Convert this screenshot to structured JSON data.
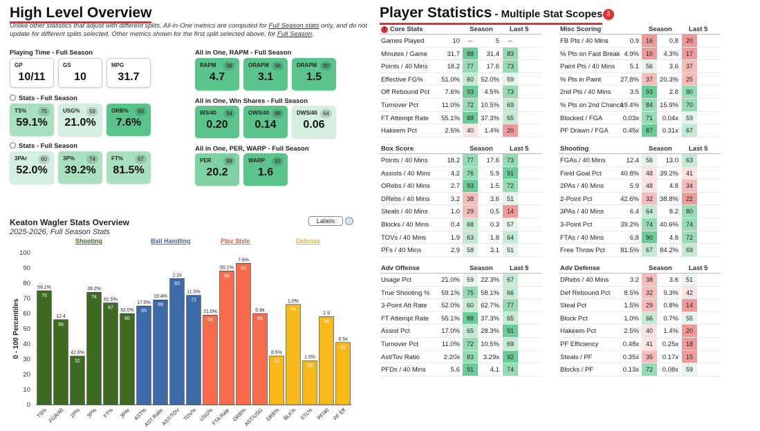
{
  "left": {
    "title": "High Level Overview",
    "note_part1": "Unlike other statistics that adjust with different splits, All-in-One metrics are computed for ",
    "note_link1": "Full Season stats",
    "note_part2": " only, and do not update for different splits selected. Other metrics shown for the first split selected above, for ",
    "note_link2": "Full Season",
    "note_part3": ".",
    "playing_time_title": "Playing Time - Full Season",
    "playing_time": [
      {
        "label": "GP",
        "value": "10/11"
      },
      {
        "label": "GS",
        "value": "10"
      },
      {
        "label": "MPG",
        "value": "31.7"
      }
    ],
    "stats1_title": "Stats - Full Season",
    "stats1": [
      {
        "label": "TS%",
        "value": "59.1%",
        "pct": "75"
      },
      {
        "label": "USG%",
        "value": "21.0%",
        "pct": "59"
      },
      {
        "label": "ORB%",
        "value": "7.6%",
        "pct": "93"
      }
    ],
    "stats2_title": "Stats - Full Season",
    "stats2": [
      {
        "label": "3PAr",
        "value": "52.0%",
        "pct": "60"
      },
      {
        "label": "3P%",
        "value": "39.2%",
        "pct": "74"
      },
      {
        "label": "FT%",
        "value": "81.5%",
        "pct": "67"
      }
    ],
    "rapm_title": "All in One, RAPM - Full Season",
    "rapm": [
      {
        "label": "RAPM",
        "value": "4.7",
        "pct": "98"
      },
      {
        "label": "ORAPM",
        "value": "3.1",
        "pct": "98"
      },
      {
        "label": "DRAPM",
        "value": "1.5",
        "pct": "90"
      }
    ],
    "ws_title": "All in One, Win Shares - Full Season",
    "ws": [
      {
        "label": "WS/40",
        "value": "0.20",
        "pct": "94"
      },
      {
        "label": "OWS/40",
        "value": "0.14",
        "pct": "96"
      },
      {
        "label": "DWS/40",
        "value": "0.06",
        "pct": "64"
      }
    ],
    "per_title": "All in One, PER, WARP - Full Season",
    "per": [
      {
        "label": "PER",
        "value": "20.2",
        "pct": "88"
      },
      {
        "label": "WARP",
        "value": "1.6",
        "pct": "93"
      }
    ]
  },
  "chart_header": {
    "title": "Keaton Wagler Stats Overview",
    "subtitle": "2025-2026, Full Season Stats",
    "labels_button": "Labels",
    "categories": [
      {
        "name": "Shooting",
        "color": "#3e6b21"
      },
      {
        "name": "Ball Handling",
        "color": "#3d6aa8"
      },
      {
        "name": "Play Style",
        "color": "#f05a3a"
      },
      {
        "name": "Defense",
        "color": "#f1b316"
      }
    ]
  },
  "chart_data": {
    "type": "bar",
    "title": "Keaton Wagler Stats Overview",
    "ylabel": "0 - 100 Percentiles",
    "ylim": [
      0,
      100
    ],
    "yticks": [
      0,
      10,
      20,
      30,
      40,
      50,
      60,
      70,
      80,
      90,
      100
    ],
    "categories": [
      "TS%",
      "FGA/40",
      "2P%",
      "3P%",
      "FT%",
      "3PAr",
      "AST%",
      "AST Ratio",
      "AST/TOV",
      "TOV%",
      "USG%",
      "FTA Rate",
      "ORB%",
      "AST/USG",
      "DRB%",
      "BLK%",
      "STL%",
      "PF/40",
      "PF Eff"
    ],
    "values": [
      75,
      56,
      32,
      74,
      67,
      60,
      65,
      69,
      83,
      72,
      59,
      88,
      93,
      60,
      32,
      66,
      29,
      58,
      41
    ],
    "raw_labels": [
      "59.1%",
      "12.4",
      "42.6%",
      "39.2%",
      "81.5%",
      "52.0%",
      "17.0%",
      "19.4%",
      "2.2x",
      "11.0%",
      "21.0%",
      "55.1%",
      "7.6%",
      "0.8x",
      "8.5%",
      "1.0%",
      "1.5%",
      "2.9",
      "0.5x"
    ],
    "groups": [
      "Shooting",
      "Shooting",
      "Shooting",
      "Shooting",
      "Shooting",
      "Shooting",
      "Ball Handling",
      "Ball Handling",
      "Ball Handling",
      "Ball Handling",
      "Play Style",
      "Play Style",
      "Play Style",
      "Play Style",
      "Defense",
      "Defense",
      "Defense",
      "Defense",
      "Defense"
    ],
    "colors": {
      "Shooting": "#3e6b21",
      "Ball Handling": "#3d6aa8",
      "Play Style": "#f76a4a",
      "Defense": "#f6b919"
    }
  },
  "right": {
    "title": "Player Statistics",
    "subtitle": " - Multiple Stat Scopes",
    "tables": [
      {
        "title": "Core Stats",
        "warn": true,
        "col1": "Season",
        "col2": "Last 5",
        "rows": [
          {
            "name": "Games Played",
            "s": "10",
            "sp": "--",
            "l": "5",
            "lp": "--"
          },
          {
            "name": "Minutes / Game",
            "s": "31.7",
            "sp": "88",
            "l": "31.4",
            "lp": "83"
          },
          {
            "name": "Points / 40 Mins",
            "s": "18.2",
            "sp": "77",
            "l": "17.6",
            "lp": "73"
          },
          {
            "name": "Effective FG%",
            "s": "51.0%",
            "sp": "60",
            "l": "52.0%",
            "lp": "59"
          },
          {
            "name": "Off Rebound Pct",
            "s": "7.6%",
            "sp": "93",
            "l": "4.5%",
            "lp": "73"
          },
          {
            "name": "Turnover Pct",
            "s": "11.0%",
            "sp": "72",
            "l": "10.5%",
            "lp": "69"
          },
          {
            "name": "FT Attempt Rate",
            "s": "55.1%",
            "sp": "88",
            "l": "37.3%",
            "lp": "65"
          },
          {
            "name": "Hakeem Pct",
            "s": "2.5%",
            "sp": "40",
            "l": "1.4%",
            "lp": "20"
          }
        ]
      },
      {
        "title": "Misc Scoring",
        "warn": false,
        "col1": "Season",
        "col2": "Last 5",
        "rows": [
          {
            "name": "FB Pts / 40 Mins",
            "s": "0.9",
            "sp": "16",
            "l": "0.8",
            "lp": "20"
          },
          {
            "name": "% Pts on Fast Break",
            "s": "4.9%",
            "sp": "10",
            "l": "4.3%",
            "lp": "17"
          },
          {
            "name": "Paint Pts / 40 Mins",
            "s": "5.1",
            "sp": "56",
            "l": "3.6",
            "lp": "37"
          },
          {
            "name": "% Pts in Paint",
            "s": "27.8%",
            "sp": "37",
            "l": "20.3%",
            "lp": "25"
          },
          {
            "name": "2nd Pts / 40 Mins",
            "s": "3.5",
            "sp": "93",
            "l": "2.8",
            "lp": "80"
          },
          {
            "name": "% Pts on 2nd Chance",
            "s": "19.4%",
            "sp": "84",
            "l": "15.9%",
            "lp": "70"
          },
          {
            "name": "Blocked / FGA",
            "s": "0.03x",
            "sp": "71",
            "l": "0.04x",
            "lp": "59"
          },
          {
            "name": "PF Drawn / FGA",
            "s": "0.45x",
            "sp": "87",
            "l": "0.31x",
            "lp": "67"
          }
        ]
      },
      {
        "title": "Box Score",
        "warn": false,
        "col1": "Season",
        "col2": "Last 5",
        "rows": [
          {
            "name": "Points / 40 Mins",
            "s": "18.2",
            "sp": "77",
            "l": "17.6",
            "lp": "73"
          },
          {
            "name": "Assists / 40 Mins",
            "s": "4.2",
            "sp": "76",
            "l": "5.9",
            "lp": "91"
          },
          {
            "name": "ORebs / 40 Mins",
            "s": "2.7",
            "sp": "93",
            "l": "1.5",
            "lp": "72"
          },
          {
            "name": "DRebs / 40 Mins",
            "s": "3.2",
            "sp": "38",
            "l": "3.6",
            "lp": "51"
          },
          {
            "name": "Steals / 40 Mins",
            "s": "1.0",
            "sp": "29",
            "l": "0.5",
            "lp": "14"
          },
          {
            "name": "Blocks / 40 Mins",
            "s": "0.4",
            "sp": "68",
            "l": "0.3",
            "lp": "57"
          },
          {
            "name": "TOVs / 40 Mins",
            "s": "1.9",
            "sp": "63",
            "l": "1.8",
            "lp": "64"
          },
          {
            "name": "PFs / 40 Mins",
            "s": "2.9",
            "sp": "58",
            "l": "3.1",
            "lp": "51"
          }
        ]
      },
      {
        "title": "Shooting",
        "warn": false,
        "col1": "Season",
        "col2": "Last 5",
        "rows": [
          {
            "name": "FGAs / 40 Mins",
            "s": "12.4",
            "sp": "56",
            "l": "13.0",
            "lp": "63"
          },
          {
            "name": "Field Goal Pct",
            "s": "40.8%",
            "sp": "48",
            "l": "39.2%",
            "lp": "41"
          },
          {
            "name": "2PAs / 40 Mins",
            "s": "5.9",
            "sp": "48",
            "l": "4.8",
            "lp": "34"
          },
          {
            "name": "2-Point Pct",
            "s": "42.6%",
            "sp": "32",
            "l": "38.8%",
            "lp": "22"
          },
          {
            "name": "3PAs / 40 Mins",
            "s": "6.4",
            "sp": "64",
            "l": "8.2",
            "lp": "80"
          },
          {
            "name": "3-Point Pct",
            "s": "39.2%",
            "sp": "74",
            "l": "40.6%",
            "lp": "74"
          },
          {
            "name": "FTAs / 40 Mins",
            "s": "6.8",
            "sp": "90",
            "l": "4.8",
            "lp": "72"
          },
          {
            "name": "Free Throw Pct",
            "s": "81.5%",
            "sp": "67",
            "l": "84.2%",
            "lp": "69"
          }
        ]
      },
      {
        "title": "Adv Offense",
        "warn": false,
        "col1": "Season",
        "col2": "Last 5",
        "rows": [
          {
            "name": "Usage Pct",
            "s": "21.0%",
            "sp": "59",
            "l": "22.3%",
            "lp": "67"
          },
          {
            "name": "True Shooting %",
            "s": "59.1%",
            "sp": "75",
            "l": "58.1%",
            "lp": "66"
          },
          {
            "name": "3-Point Att Rate",
            "s": "52.0%",
            "sp": "60",
            "l": "62.7%",
            "lp": "77"
          },
          {
            "name": "FT Attempt Rate",
            "s": "55.1%",
            "sp": "88",
            "l": "37.3%",
            "lp": "65"
          },
          {
            "name": "Assist Pct",
            "s": "17.0%",
            "sp": "65",
            "l": "28.3%",
            "lp": "91"
          },
          {
            "name": "Turnover Pct",
            "s": "11.0%",
            "sp": "72",
            "l": "10.5%",
            "lp": "69"
          },
          {
            "name": "Ast/Tov Ratio",
            "s": "2.20x",
            "sp": "83",
            "l": "3.29x",
            "lp": "92"
          },
          {
            "name": "PFDs / 40 Mins",
            "s": "5.6",
            "sp": "91",
            "l": "4.1",
            "lp": "74"
          }
        ]
      },
      {
        "title": "Adv Defense",
        "warn": false,
        "col1": "Season",
        "col2": "Last 5",
        "rows": [
          {
            "name": "DRebs / 40 Mins",
            "s": "3.2",
            "sp": "38",
            "l": "3.6",
            "lp": "51"
          },
          {
            "name": "Def Rebound Pct",
            "s": "8.5%",
            "sp": "32",
            "l": "9.3%",
            "lp": "42"
          },
          {
            "name": "Steal Pct",
            "s": "1.5%",
            "sp": "29",
            "l": "0.8%",
            "lp": "14"
          },
          {
            "name": "Block Pct",
            "s": "1.0%",
            "sp": "66",
            "l": "0.7%",
            "lp": "55"
          },
          {
            "name": "Hakeem Pct",
            "s": "2.5%",
            "sp": "40",
            "l": "1.4%",
            "lp": "20"
          },
          {
            "name": "PF Efficiency",
            "s": "0.48x",
            "sp": "41",
            "l": "0.25x",
            "lp": "18"
          },
          {
            "name": "Steals / PF",
            "s": "0.35x",
            "sp": "35",
            "l": "0.17x",
            "lp": "15"
          },
          {
            "name": "Blocks / PF",
            "s": "0.13x",
            "sp": "72",
            "l": "0.08x",
            "lp": "59"
          }
        ]
      }
    ]
  }
}
